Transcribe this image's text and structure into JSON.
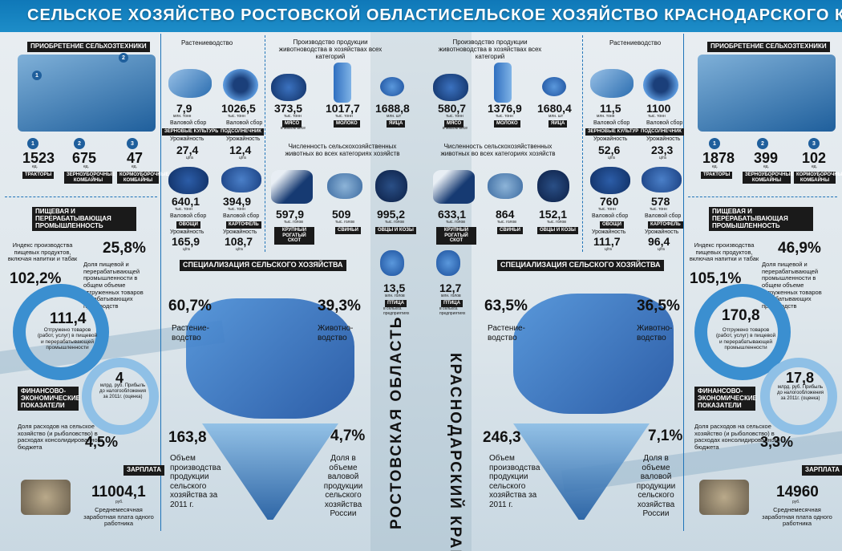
{
  "titles": {
    "left": "СЕЛЬСКОЕ ХОЗЯЙСТВО РОСТОВСКОЙ ОБЛАСТИ",
    "right": "СЕЛЬСКОЕ ХОЗЯЙСТВО КРАСНОДАРСКОГО КРАЯ"
  },
  "vertical": {
    "left": "РОСТОВСКАЯ ОБЛАСТЬ",
    "right": "КРАСНОДАРСКИЙ КРАЙ"
  },
  "common": {
    "equipment": "ПРИОБРЕТЕНИЕ СЕЛЬХОЗТЕХНИКИ",
    "unit_ed": "ед.",
    "tractors": "ТРАКТОРЫ",
    "grain": "ЗЕРНОУБОРОЧНЫЕ КОМБАЙНЫ",
    "forage": "КОРМОУБОРОЧНЫЕ КОМБАЙНЫ",
    "food_industry": "ПИЩЕВАЯ И ПЕРЕРАБАТЫВАЮЩАЯ ПРОМЫШЛЕННОСТЬ",
    "index_text": "Индекс производства пищевых продуктов, включая напитки и табак",
    "share_text": "Доля пищевой и перерабатывающей промышленности в общем объеме отгруженных товаров обрабатывающих производств",
    "shipped_text": "Отгружено товаров (работ, услуг) в пищевой и перерабатывающей промышленности",
    "finance": "ФИНАНСОВО-ЭКОНОМИЧЕСКИЕ ПОКАЗАТЕЛИ",
    "profit_text": "млрд. руб. Прибыль до налогообложения за 2011г. (оценка)",
    "budget_text": "Доля расходов на сельское хозяйство (и рыболовство) в расходах консолидированного бюджета",
    "salary": "ЗАРПЛАТА",
    "rub": "руб.",
    "salary_text": "Среднемесячная заработная плата одного работника",
    "crop": "Растениеводство",
    "livestock_prod": "Производство продукции животноводства в хозяйствах всех категорий",
    "headcount": "Численность сельскохозяйственных животных во всех категориях хозяйств",
    "harvest": "Валовой сбор",
    "yield": "Урожайность",
    "t_thous": "тыс. тонн",
    "t_mln": "млн. тонн",
    "cha": "ц/га",
    "heads": "тыс. голов",
    "mln_heads": "млн. голов",
    "mln_pcs": "млн. шт",
    "live_weight": "в живом весе",
    "grain_crops": "ЗЕРНОВЫЕ КУЛЬТУРЫ",
    "sunflower": "ПОДСОЛНЕЧНИК",
    "veg": "ОВОЩИ",
    "potato": "КАРТОФЕЛЬ",
    "meat": "МЯСО",
    "milk": "МОЛОКО",
    "eggs": "ЯЙЦА",
    "cattle": "КРУПНЫЙ РОГАТЫЙ СКОТ",
    "pigs": "СВИНЬИ",
    "sheep": "ОВЦЫ И КОЗЫ",
    "poultry": "ПТИЦА",
    "poultry_note": "в сельхоз. предприятиях",
    "specialization": "СПЕЦИАЛИЗАЦИЯ СЕЛЬСКОГО ХОЗЯЙСТВА",
    "crop_short": "Растение-водство",
    "animal_short": "Животно-водство",
    "volume_text": "Объем производства продукции сельского хозяйства за 2011 г.",
    "share_russia": "Доля в объеме валовой продукции сельского хозяйства России"
  },
  "rostov": {
    "tractors": "1523",
    "grain": "675",
    "forage": "47",
    "index": "102,2%",
    "share": "25,8%",
    "shipped": "111,4",
    "profit": "4",
    "budget": "4,5%",
    "salary": "11004,1",
    "grain_crops": "7,9",
    "grain_yield": "27,4",
    "sunflower": "1026,5",
    "sunflower_yield": "12,4",
    "veg": "640,1",
    "veg_yield": "165,9",
    "potato": "394,9",
    "potato_yield": "108,7",
    "meat": "373,5",
    "milk": "1017,7",
    "eggs": "1688,8",
    "cattle": "597,9",
    "pigs": "509",
    "sheep": "995,2",
    "poultry": "13,5",
    "crop_pct": "60,7%",
    "animal_pct": "39,3%",
    "volume": "163,8",
    "russia_pct": "4,7%"
  },
  "krasnodar": {
    "tractors": "1878",
    "grain": "399",
    "forage": "102",
    "index": "105,1%",
    "share": "46,9%",
    "shipped": "170,8",
    "profit": "17,8",
    "budget": "3,3%",
    "salary": "14960",
    "grain_crops": "11,5",
    "grain_yield": "52,6",
    "sunflower": "1100",
    "sunflower_yield": "23,3",
    "veg": "760",
    "veg_yield": "111,7",
    "potato": "578",
    "potato_yield": "96,4",
    "meat": "580,7",
    "milk": "1376,9",
    "eggs": "1680,4",
    "cattle": "633,1",
    "pigs": "864",
    "sheep": "152,1",
    "poultry": "12,7",
    "crop_pct": "63,5%",
    "animal_pct": "36,5%",
    "volume": "246,3",
    "russia_pct": "7,1%"
  }
}
